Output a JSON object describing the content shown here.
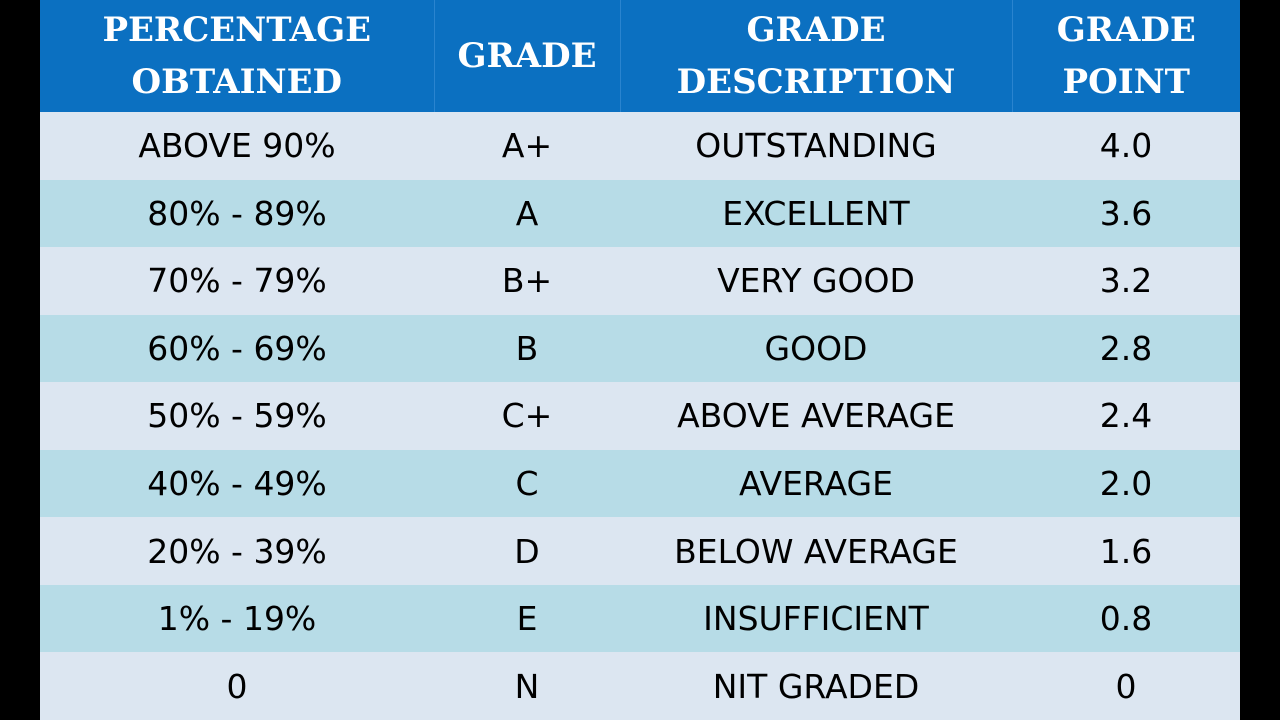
{
  "header": {
    "col1": "PERCENTAGE\nOBTAINED",
    "col2": "GRADE",
    "col3": "GRADE\nDESCRIPTION",
    "col4": "GRADE\nPOINT"
  },
  "rows": [
    {
      "percentage": "ABOVE 90%",
      "grade": "A+",
      "description": "OUTSTANDING",
      "point": "4.0"
    },
    {
      "percentage": "80% - 89%",
      "grade": "A",
      "description": "EXCELLENT",
      "point": "3.6"
    },
    {
      "percentage": "70% - 79%",
      "grade": "B+",
      "description": "VERY GOOD",
      "point": "3.2"
    },
    {
      "percentage": "60% - 69%",
      "grade": "B",
      "description": "GOOD",
      "point": "2.8"
    },
    {
      "percentage": "50% - 59%",
      "grade": "C+",
      "description": "ABOVE AVERAGE",
      "point": "2.4"
    },
    {
      "percentage": "40% - 49%",
      "grade": "C",
      "description": "AVERAGE",
      "point": "2.0"
    },
    {
      "percentage": "20% - 39%",
      "grade": "D",
      "description": "BELOW AVERAGE",
      "point": "1.6"
    },
    {
      "percentage": "1% - 19%",
      "grade": "E",
      "description": "INSUFFICIENT",
      "point": "0.8"
    },
    {
      "percentage": "0",
      "grade": "N",
      "description": "NIT GRADED",
      "point": "0"
    }
  ],
  "colors": {
    "header_bg": "#0b70c1",
    "row_light": "#dce6f1",
    "row_teal": "#b7dce7"
  }
}
